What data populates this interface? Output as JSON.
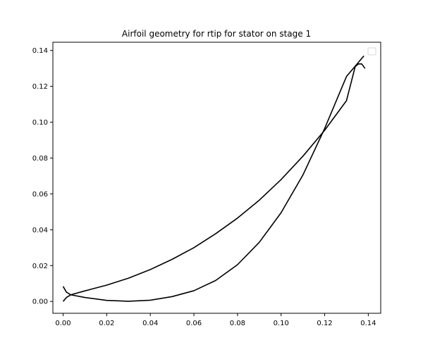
{
  "chart_data": {
    "type": "line",
    "title": "Airfoil geometry for rtip for stator on stage 1",
    "xlabel": "",
    "ylabel": "",
    "xlim": [
      -0.0047,
      0.1457
    ],
    "ylim": [
      -0.0066,
      0.1446
    ],
    "xticks": [
      "0.00",
      "0.02",
      "0.04",
      "0.06",
      "0.08",
      "0.10",
      "0.12",
      "0.14"
    ],
    "yticks": [
      "0.00",
      "0.02",
      "0.04",
      "0.06",
      "0.08",
      "0.10",
      "0.12",
      "0.14"
    ],
    "grid": false,
    "legend": "upper right (empty)",
    "line_color": "#000000",
    "series": [
      {
        "x": [
          0.0035,
          0.01,
          0.02,
          0.03,
          0.04,
          0.05,
          0.06,
          0.07,
          0.08,
          0.09,
          0.1,
          0.11,
          0.12,
          0.13,
          0.134
        ],
        "y": [
          0.0037,
          0.0059,
          0.0091,
          0.013,
          0.0178,
          0.0235,
          0.03,
          0.0378,
          0.0465,
          0.0565,
          0.068,
          0.081,
          0.0955,
          0.112,
          0.131
        ]
      },
      {
        "x": [
          0.0035,
          0.01,
          0.02,
          0.03,
          0.04,
          0.05,
          0.06,
          0.07,
          0.08,
          0.09,
          0.1,
          0.11,
          0.12,
          0.13,
          0.138
        ],
        "y": [
          0.0037,
          0.0022,
          0.0006,
          0.0001,
          0.0007,
          0.0027,
          0.006,
          0.0117,
          0.0205,
          0.033,
          0.0495,
          0.0705,
          0.0965,
          0.1255,
          0.137
        ]
      },
      {
        "x": [
          0.134,
          0.1355,
          0.137,
          0.1385
        ],
        "y": [
          0.131,
          0.1325,
          0.1325,
          0.13
        ]
      },
      {
        "x": [
          0.0,
          0.0015,
          0.0035,
          0.0015,
          0.0
        ],
        "y": [
          0.0084,
          0.0052,
          0.0037,
          0.0022,
          0.0
        ]
      }
    ]
  }
}
